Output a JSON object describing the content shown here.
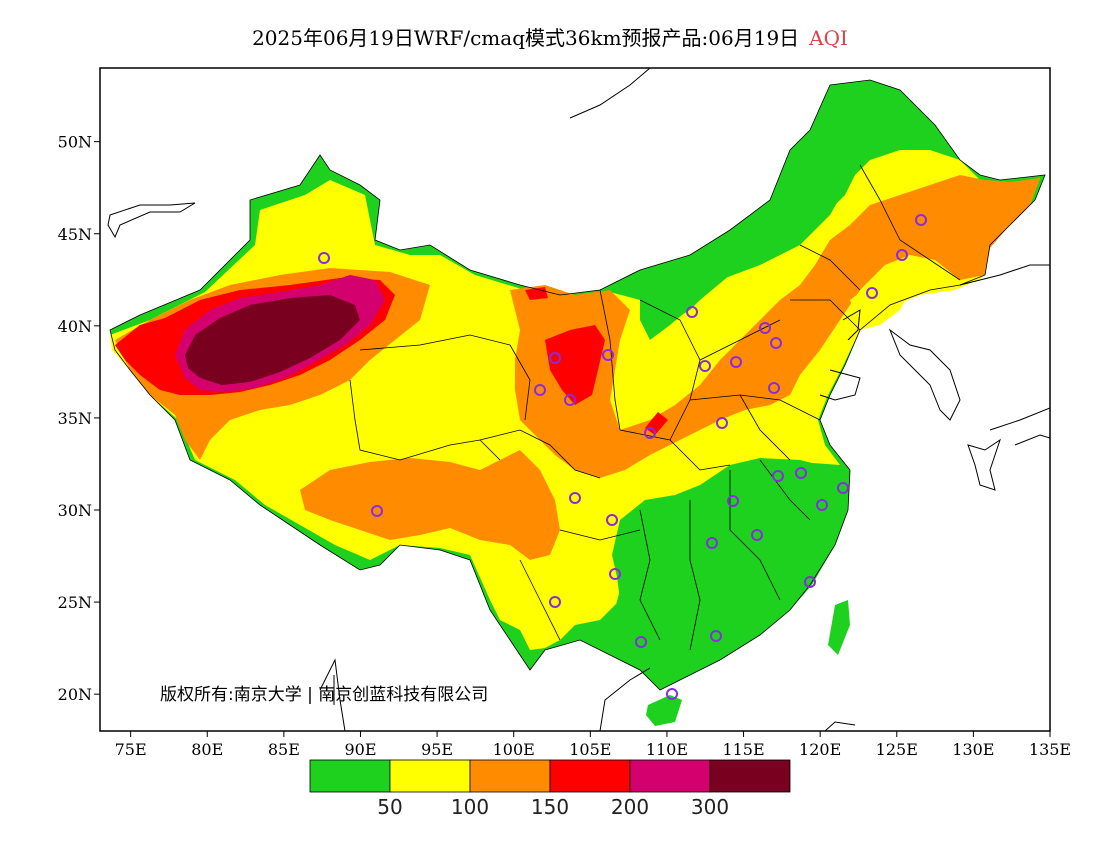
{
  "title": {
    "main": "2025年06月19日WRF/cmaq模式36km预报产品:06月19日",
    "variable": "AQI"
  },
  "axes": {
    "lon_labels": [
      "75E",
      "80E",
      "85E",
      "90E",
      "95E",
      "100E",
      "105E",
      "110E",
      "115E",
      "120E",
      "125E",
      "130E",
      "135E"
    ],
    "lat_labels": [
      "20N",
      "25N",
      "30N",
      "35N",
      "40N",
      "45N",
      "50N"
    ],
    "lon_range": [
      73,
      135
    ],
    "lat_range": [
      18,
      54
    ]
  },
  "legend": {
    "labels": [
      "50",
      "100",
      "150",
      "200",
      "300"
    ],
    "colors": [
      "#1ed11e",
      "#ffff00",
      "#ff8c00",
      "#ff0000",
      "#d4006e",
      "#7a0020"
    ]
  },
  "copyright": "版权所有:南京大学 | 南京创蓝科技有限公司",
  "colors": {
    "good": "#1ed11e",
    "moderate": "#ffff00",
    "unhealthy_sensitive": "#ff8c00",
    "unhealthy": "#ff0000",
    "very_unhealthy": "#d4006e",
    "hazardous": "#7a0020",
    "station_marker": "#8a2be2"
  }
}
